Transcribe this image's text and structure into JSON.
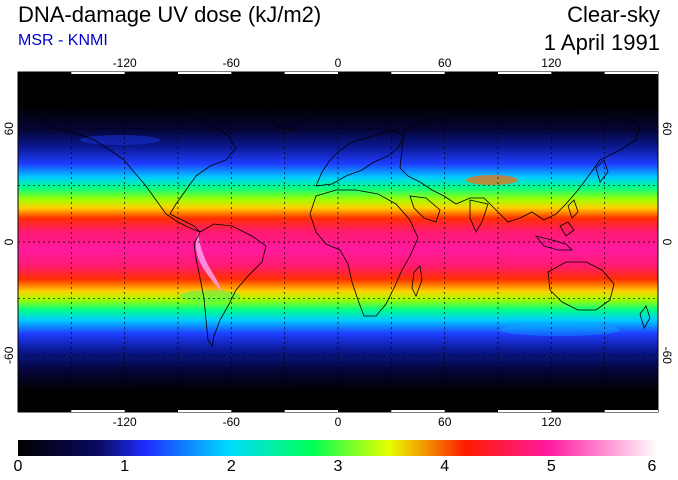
{
  "header": {
    "title": "DNA-damage UV dose (kJ/m2)",
    "subtitle": "MSR - KNMI",
    "condition": "Clear-sky",
    "date": "1 April 1991"
  },
  "map": {
    "projection": "equirectangular",
    "lon_range": [
      -180,
      180
    ],
    "lat_range": [
      -90,
      90
    ],
    "lon_ticks": [
      "-120",
      "-60",
      "0",
      "60",
      "120"
    ],
    "lat_ticks": [
      "60",
      "0",
      "-60"
    ],
    "gridlines": "dotted",
    "coastlines": true,
    "field": "clear-sky daily DNA-damage UV dose",
    "colors": {
      "background": "#ffffff",
      "coast": "#000000",
      "grid": "#000000"
    }
  },
  "colorbar": {
    "min": 0,
    "max": 6,
    "tick_labels": [
      "0",
      "1",
      "2",
      "3",
      "4",
      "5",
      "6"
    ],
    "colors": [
      "#000000",
      "#0a0a60",
      "#1f2dff",
      "#00dcff",
      "#00ff55",
      "#e8ff00",
      "#ff1a00",
      "#ff1aa0",
      "#ffffff"
    ]
  }
}
